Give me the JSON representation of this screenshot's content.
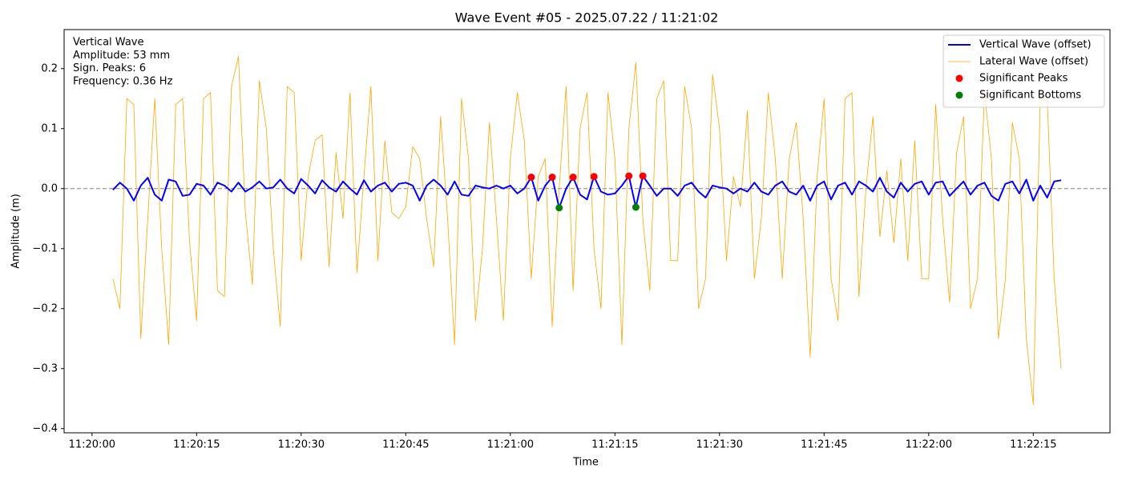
{
  "chart_data": {
    "type": "line",
    "title": "Wave Event #05 - 2025.07.22 / 11:21:02",
    "xlabel": "Time",
    "ylabel": "Amplitude (m)",
    "annotation": [
      "Vertical Wave",
      "Amplitude: 53 mm",
      "Sign. Peaks: 6",
      "Frequency: 0.36 Hz"
    ],
    "annotation_color": "#0000ff",
    "legend": "upper right",
    "hline": 0,
    "xlim": [
      "11:19:56",
      "11:22:26"
    ],
    "ylim": [
      -0.407,
      0.265
    ],
    "xticks": [
      "11:20:00",
      "11:20:15",
      "11:20:30",
      "11:20:45",
      "11:21:00",
      "11:21:15",
      "11:21:30",
      "11:21:45",
      "11:22:00",
      "11:22:15"
    ],
    "yticks": [
      {
        "value": -0.4,
        "label": "−0.4"
      },
      {
        "value": -0.3,
        "label": "−0.3"
      },
      {
        "value": -0.2,
        "label": "−0.2"
      },
      {
        "value": -0.1,
        "label": "−0.1"
      },
      {
        "value": 0,
        "label": "0.0"
      },
      0.1,
      0.2
    ],
    "x": [
      "11:20:03",
      "11:20:04",
      "11:20:05",
      "11:20:06",
      "11:20:07",
      "11:20:08",
      "11:20:09",
      "11:20:10",
      "11:20:11",
      "11:20:12",
      "11:20:13",
      "11:20:14",
      "11:20:15",
      "11:20:16",
      "11:20:17",
      "11:20:18",
      "11:20:19",
      "11:20:20",
      "11:20:21",
      "11:20:22",
      "11:20:23",
      "11:20:24",
      "11:20:25",
      "11:20:26",
      "11:20:27",
      "11:20:28",
      "11:20:29",
      "11:20:30",
      "11:20:31",
      "11:20:32",
      "11:20:33",
      "11:20:34",
      "11:20:35",
      "11:20:36",
      "11:20:37",
      "11:20:38",
      "11:20:39",
      "11:20:40",
      "11:20:41",
      "11:20:42",
      "11:20:43",
      "11:20:44",
      "11:20:45",
      "11:20:46",
      "11:20:47",
      "11:20:48",
      "11:20:49",
      "11:20:50",
      "11:20:51",
      "11:20:52",
      "11:20:53",
      "11:20:54",
      "11:20:55",
      "11:20:56",
      "11:20:57",
      "11:20:58",
      "11:20:59",
      "11:21:00",
      "11:21:01",
      "11:21:02",
      "11:21:03",
      "11:21:04",
      "11:21:05",
      "11:21:06",
      "11:21:07",
      "11:21:08",
      "11:21:09",
      "11:21:10",
      "11:21:11",
      "11:21:12",
      "11:21:13",
      "11:21:14",
      "11:21:15",
      "11:21:16",
      "11:21:17",
      "11:21:18",
      "11:21:19",
      "11:21:20",
      "11:21:21",
      "11:21:22",
      "11:21:23",
      "11:21:24",
      "11:21:25",
      "11:21:26",
      "11:21:27",
      "11:21:28",
      "11:21:29",
      "11:21:30",
      "11:21:31",
      "11:21:32",
      "11:21:33",
      "11:21:34",
      "11:21:35",
      "11:21:36",
      "11:21:37",
      "11:21:38",
      "11:21:39",
      "11:21:40",
      "11:21:41",
      "11:21:42",
      "11:21:43",
      "11:21:44",
      "11:21:45",
      "11:21:46",
      "11:21:47",
      "11:21:48",
      "11:21:49",
      "11:21:50",
      "11:21:51",
      "11:21:52",
      "11:21:53",
      "11:21:54",
      "11:21:55",
      "11:21:56",
      "11:21:57",
      "11:21:58",
      "11:21:59",
      "11:22:00",
      "11:22:01",
      "11:22:02",
      "11:22:03",
      "11:22:04",
      "11:22:05",
      "11:22:06",
      "11:22:07",
      "11:22:08",
      "11:22:09",
      "11:22:10",
      "11:22:11",
      "11:22:12",
      "11:22:13",
      "11:22:14",
      "11:22:15",
      "11:22:16",
      "11:22:17",
      "11:22:18",
      "11:22:19"
    ],
    "series": [
      {
        "name": "Vertical Wave (offset)",
        "color": "#0000ff",
        "style": "line",
        "width": 2,
        "values": [
          -0.002,
          0.01,
          0.0,
          -0.02,
          0.005,
          0.018,
          -0.01,
          -0.02,
          0.015,
          0.012,
          -0.012,
          -0.01,
          0.008,
          0.005,
          -0.01,
          0.01,
          0.005,
          -0.005,
          0.01,
          -0.005,
          0.002,
          0.012,
          0.0,
          0.002,
          0.015,
          0.0,
          -0.008,
          0.016,
          0.005,
          -0.008,
          0.014,
          0.002,
          -0.005,
          0.012,
          0.0,
          -0.01,
          0.014,
          -0.005,
          0.005,
          0.01,
          -0.005,
          0.008,
          0.01,
          0.005,
          -0.02,
          0.005,
          0.015,
          0.005,
          -0.01,
          0.012,
          -0.01,
          -0.012,
          0.005,
          0.002,
          0.0,
          0.005,
          0.0,
          0.005,
          -0.008,
          0.0,
          0.019,
          -0.02,
          0.005,
          0.019,
          -0.032,
          0.0,
          0.019,
          -0.01,
          -0.018,
          0.02,
          -0.005,
          -0.01,
          -0.008,
          0.005,
          0.021,
          -0.031,
          0.021,
          0.005,
          -0.012,
          0.0,
          0.0,
          -0.012,
          0.005,
          0.01,
          -0.005,
          -0.015,
          0.005,
          0.002,
          0.0,
          -0.008,
          0.0,
          -0.005,
          0.01,
          -0.005,
          -0.01,
          0.005,
          0.012,
          -0.005,
          -0.01,
          0.005,
          -0.02,
          0.005,
          0.012,
          -0.018,
          0.005,
          0.01,
          -0.01,
          0.012,
          0.005,
          -0.005,
          0.018,
          -0.005,
          -0.015,
          0.01,
          -0.005,
          0.008,
          0.012,
          -0.01,
          0.01,
          0.012,
          -0.012,
          0.0,
          0.012,
          -0.01,
          0.005,
          0.01,
          -0.012,
          -0.02,
          0.008,
          0.012,
          -0.008,
          0.015,
          -0.02,
          0.005,
          -0.015,
          0.012,
          0.014
        ]
      },
      {
        "name": "Lateral Wave (offset)",
        "color": "#ffa500",
        "style": "line",
        "width": 0.8,
        "values": [
          -0.15,
          -0.2,
          0.15,
          0.14,
          -0.25,
          -0.05,
          0.15,
          -0.1,
          -0.26,
          0.14,
          0.15,
          -0.09,
          -0.22,
          0.15,
          0.16,
          -0.17,
          -0.18,
          0.17,
          0.22,
          -0.04,
          -0.16,
          0.18,
          0.1,
          -0.1,
          -0.23,
          0.17,
          0.16,
          -0.12,
          0.02,
          0.08,
          0.09,
          -0.13,
          0.06,
          -0.05,
          0.16,
          -0.14,
          0.02,
          0.17,
          -0.12,
          0.08,
          -0.04,
          -0.05,
          -0.03,
          0.07,
          0.05,
          -0.05,
          -0.13,
          0.12,
          -0.05,
          -0.26,
          0.15,
          0.05,
          -0.22,
          -0.1,
          0.11,
          -0.05,
          -0.22,
          0.05,
          0.16,
          0.08,
          -0.15,
          0.02,
          0.05,
          -0.23,
          0.0,
          0.17,
          -0.17,
          0.1,
          0.16,
          -0.1,
          -0.2,
          0.16,
          0.05,
          -0.26,
          0.1,
          0.21,
          -0.05,
          -0.17,
          0.15,
          0.18,
          -0.12,
          -0.12,
          0.17,
          0.1,
          -0.2,
          -0.15,
          0.19,
          0.1,
          -0.12,
          0.02,
          -0.03,
          0.13,
          -0.15,
          -0.05,
          0.16,
          0.05,
          -0.15,
          0.05,
          0.11,
          -0.05,
          -0.28,
          0.02,
          0.15,
          -0.15,
          -0.22,
          0.15,
          0.16,
          -0.18,
          0.0,
          0.12,
          -0.08,
          0.03,
          -0.09,
          0.05,
          -0.12,
          0.08,
          -0.15,
          -0.15,
          0.14,
          -0.05,
          -0.19,
          0.06,
          0.12,
          -0.2,
          -0.15,
          0.16,
          0.05,
          -0.25,
          -0.15,
          0.11,
          0.05,
          -0.25,
          -0.36,
          0.15,
          0.15,
          -0.15,
          -0.3
        ]
      },
      {
        "name": "Significant Peaks",
        "color": "#ff0000",
        "style": "marker",
        "x": [
          "11:21:03",
          "11:21:06",
          "11:21:09",
          "11:21:12",
          "11:21:17",
          "11:21:19"
        ],
        "values": [
          0.019,
          0.019,
          0.019,
          0.02,
          0.021,
          0.021
        ]
      },
      {
        "name": "Significant Bottoms",
        "color": "#008000",
        "style": "marker",
        "x": [
          "11:21:07",
          "11:21:18"
        ],
        "values": [
          -0.032,
          -0.031
        ]
      }
    ]
  }
}
